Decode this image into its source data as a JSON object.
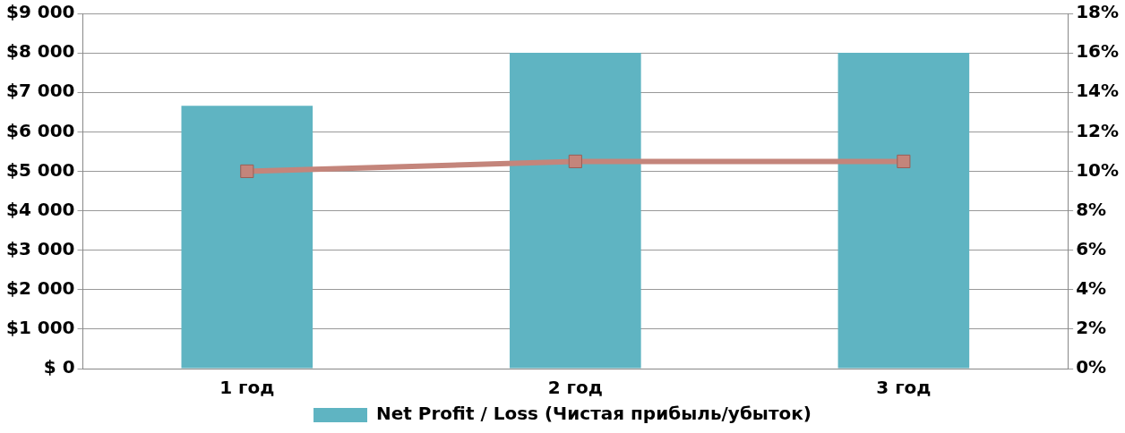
{
  "chart_data": {
    "type": "bar",
    "categories": [
      "1 год",
      "2 год",
      "3 год"
    ],
    "series": [
      {
        "name": "Net Profit / Loss (Чистая прибыль/убыток)",
        "color": "#5fb4c2",
        "values": [
          6660,
          8000,
          8000
        ]
      },
      {
        "type": "line",
        "axis": "y2",
        "color": "#c4857b",
        "marker": "square",
        "line_style": "solid",
        "values": [
          10,
          10.5,
          10.5
        ]
      }
    ],
    "ylim": [
      0,
      9000
    ],
    "yticks": [
      {
        "value": 0,
        "label": "$ 0"
      },
      {
        "value": 1000,
        "label": "$1 000"
      },
      {
        "value": 2000,
        "label": "$2 000"
      },
      {
        "value": 3000,
        "label": "$3 000"
      },
      {
        "value": 4000,
        "label": "$4 000"
      },
      {
        "value": 5000,
        "label": "$5 000"
      },
      {
        "value": 6000,
        "label": "$6 000"
      },
      {
        "value": 7000,
        "label": "$7 000"
      },
      {
        "value": 8000,
        "label": "$8 000"
      },
      {
        "value": 9000,
        "label": "$9 000"
      }
    ],
    "y2lim": [
      0,
      18
    ],
    "y2ticks": [
      {
        "value": 0,
        "label": "0%"
      },
      {
        "value": 2,
        "label": "2%"
      },
      {
        "value": 4,
        "label": "4%"
      },
      {
        "value": 6,
        "label": "6%"
      },
      {
        "value": 8,
        "label": "8%"
      },
      {
        "value": 10,
        "label": "10%"
      },
      {
        "value": 12,
        "label": "12%"
      },
      {
        "value": 14,
        "label": "14%"
      },
      {
        "value": 16,
        "label": "16%"
      },
      {
        "value": 18,
        "label": "18%"
      }
    ],
    "grid": "y",
    "legend": "bottom"
  }
}
